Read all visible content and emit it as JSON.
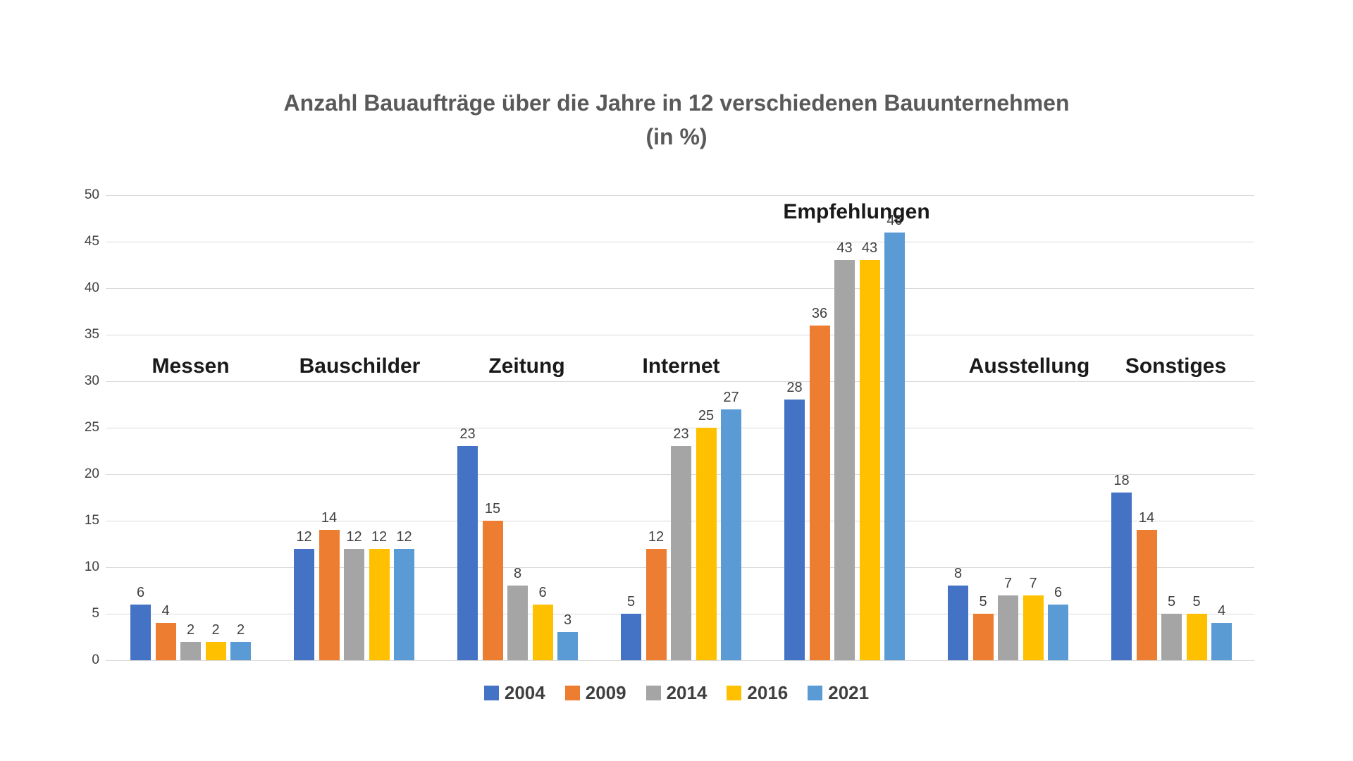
{
  "title": {
    "line1": "Anzahl Bauaufträge über die Jahre in 12 verschiedenen Bauunternehmen",
    "line2": "(in %)"
  },
  "chart_data": {
    "type": "bar",
    "categories": [
      "Messen",
      "Bauschilder",
      "Zeitung",
      "Internet",
      "Empfehlungen",
      "Ausstellung",
      "Sonstiges"
    ],
    "series": [
      {
        "name": "2004",
        "color": "#4472C4",
        "values": [
          6,
          12,
          23,
          5,
          28,
          8,
          18
        ]
      },
      {
        "name": "2009",
        "color": "#ED7D31",
        "values": [
          4,
          14,
          15,
          12,
          36,
          5,
          14
        ]
      },
      {
        "name": "2014",
        "color": "#A5A5A5",
        "values": [
          2,
          12,
          8,
          23,
          43,
          7,
          5
        ]
      },
      {
        "name": "2016",
        "color": "#FFC000",
        "values": [
          2,
          12,
          6,
          25,
          43,
          7,
          5
        ]
      },
      {
        "name": "2021",
        "color": "#5B9BD5",
        "values": [
          2,
          12,
          3,
          27,
          46,
          6,
          4
        ]
      }
    ],
    "title": "Anzahl Bauaufträge über die Jahre in 12 verschiedenen Bauunternehmen (in %)",
    "xlabel": "",
    "ylabel": "",
    "ylim": [
      0,
      50
    ],
    "ytick_step": 5,
    "grid": true,
    "legend_position": "bottom",
    "value_labels_shown": true,
    "category_labels_float_inside_plot": true,
    "gridline_color": "#d9d9d9",
    "label_color": "#404040"
  }
}
